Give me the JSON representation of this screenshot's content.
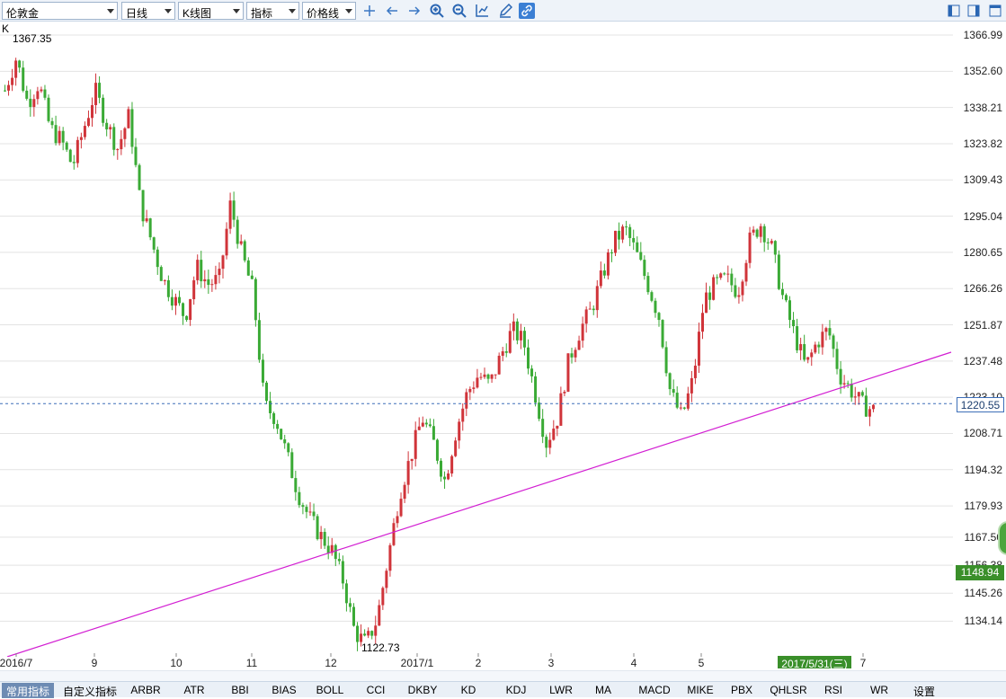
{
  "toolbar": {
    "symbol": "伦敦金",
    "period": "日线",
    "chart_type": "K线图",
    "indicator": "指标",
    "price_line": "价格线",
    "tools": [
      "crosshair-icon",
      "arrow-left-icon",
      "arrow-right-icon",
      "zoom-in-icon",
      "zoom-out-icon",
      "chart-axis-icon",
      "pen-icon",
      "link-icon"
    ],
    "right_icons": [
      "panel-left-icon",
      "panel-right-icon",
      "window-icon"
    ]
  },
  "chart": {
    "label": "K",
    "high_label": "1367.35",
    "low_label": "1122.73",
    "current_price": "1220.55",
    "crosshair_price": "1148.94",
    "date_badge": "2017/5/31(三)",
    "colors": {
      "up": "#d0343a",
      "down": "#3aaa35",
      "trendline": "#d21ed2",
      "price_line": "#3d6fb8",
      "badge": "#3a8f2a",
      "grid": "#e3e3e3"
    }
  },
  "chart_data": {
    "type": "candlestick",
    "ylim": [
      1120,
      1372
    ],
    "y_ticks": [
      "1366.99",
      "1352.60",
      "1338.21",
      "1323.82",
      "1309.43",
      "1295.04",
      "1280.65",
      "1266.26",
      "1251.87",
      "1237.48",
      "1223.10",
      "1208.71",
      "1194.32",
      "1179.93",
      "1167.50",
      "1156.38",
      "1145.26",
      "1134.14"
    ],
    "x_ticks": [
      "2016/7",
      "9",
      "10",
      "11",
      "12",
      "2017/1",
      "2",
      "3",
      "4",
      "5",
      "2017/5/31(三)",
      "7"
    ],
    "close_path": [
      1345,
      1358,
      1340,
      1348,
      1330,
      1325,
      1315,
      1330,
      1345,
      1332,
      1322,
      1335,
      1300,
      1285,
      1270,
      1262,
      1255,
      1275,
      1268,
      1270,
      1300,
      1280,
      1265,
      1220,
      1215,
      1200,
      1185,
      1175,
      1168,
      1162,
      1150,
      1130,
      1125,
      1135,
      1160,
      1185,
      1200,
      1215,
      1205,
      1190,
      1210,
      1225,
      1232,
      1228,
      1240,
      1250,
      1245,
      1225,
      1205,
      1215,
      1238,
      1250,
      1258,
      1272,
      1285,
      1290,
      1280,
      1268,
      1255,
      1225,
      1215,
      1230,
      1262,
      1268,
      1270,
      1265,
      1285,
      1292,
      1282,
      1262,
      1248,
      1235,
      1245,
      1250,
      1232,
      1226,
      1220,
      1218
    ],
    "trendline": [
      {
        "x": 0,
        "y": 1120
      },
      {
        "x": 1,
        "y": 1241
      }
    ],
    "trendline_dates": [
      "2016/7",
      "2017/7"
    ]
  },
  "bottom_axis": {
    "labels": [
      "2016/7",
      "9",
      "10",
      "11",
      "12",
      "2017/1",
      "2",
      "3",
      "4",
      "5",
      "7"
    ]
  },
  "tabs": [
    "常用指标",
    "自定义指标",
    "ARBR",
    "ATR",
    "BBI",
    "BIAS",
    "BOLL",
    "CCI",
    "DKBY",
    "KD",
    "KDJ",
    "LWR",
    "MA",
    "MACD",
    "MIKE",
    "PBX",
    "QHLSR",
    "RSI",
    "WR",
    "设置"
  ]
}
